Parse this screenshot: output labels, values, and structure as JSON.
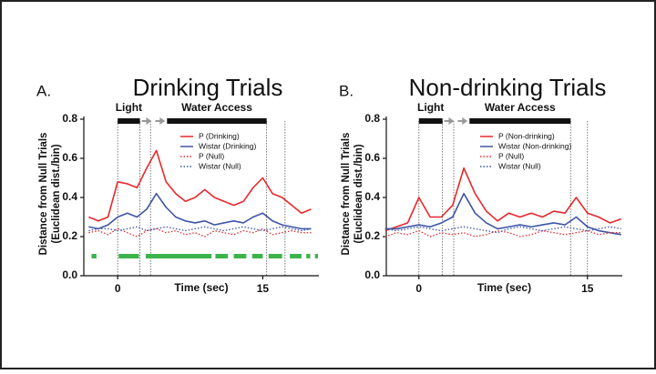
{
  "chart_data": [
    {
      "type": "line",
      "panel": "A.",
      "title": "Drinking Trials",
      "ylabel": [
        "Distance from Null Trials",
        "(Euclidean dist./bin)"
      ],
      "xlabel": "Time (sec)",
      "xlim": [
        -3.5,
        20.8
      ],
      "xticks": [
        0,
        15
      ],
      "ylim": [
        0,
        0.8
      ],
      "yticks": [
        {
          "value": 0,
          "label": "0.0"
        },
        0.2,
        0.4,
        0.6,
        0.8
      ],
      "x": [
        -3,
        -2,
        -1,
        0,
        1,
        2,
        3,
        4,
        5,
        6,
        7,
        8,
        9,
        10,
        11,
        12,
        13,
        14,
        15,
        16,
        17,
        18,
        19,
        20
      ],
      "series": [
        {
          "name": "P (Drinking)",
          "color": "#e8282b",
          "linestyle": "solid",
          "values": [
            0.3,
            0.28,
            0.3,
            0.48,
            0.47,
            0.45,
            0.55,
            0.64,
            0.48,
            0.42,
            0.38,
            0.4,
            0.44,
            0.4,
            0.38,
            0.36,
            0.38,
            0.45,
            0.5,
            0.42,
            0.4,
            0.36,
            0.32,
            0.34
          ]
        },
        {
          "name": "Wistar (Drinking)",
          "color": "#3d55a6",
          "linestyle": "solid",
          "values": [
            0.25,
            0.24,
            0.26,
            0.3,
            0.32,
            0.3,
            0.34,
            0.42,
            0.35,
            0.3,
            0.28,
            0.27,
            0.28,
            0.26,
            0.27,
            0.28,
            0.27,
            0.3,
            0.32,
            0.28,
            0.26,
            0.25,
            0.24,
            0.24
          ]
        },
        {
          "name": "P (Null)",
          "color": "#e8282b",
          "linestyle": "dotted",
          "values": [
            0.22,
            0.23,
            0.21,
            0.24,
            0.22,
            0.2,
            0.23,
            0.24,
            0.22,
            0.23,
            0.21,
            0.22,
            0.2,
            0.23,
            0.22,
            0.21,
            0.23,
            0.22,
            0.24,
            0.21,
            0.22,
            0.23,
            0.22,
            0.22
          ]
        },
        {
          "name": "Wistar (Null)",
          "color": "#3d55a6",
          "linestyle": "dotted",
          "values": [
            0.23,
            0.24,
            0.24,
            0.23,
            0.24,
            0.25,
            0.23,
            0.24,
            0.25,
            0.24,
            0.23,
            0.24,
            0.25,
            0.24,
            0.23,
            0.24,
            0.25,
            0.24,
            0.23,
            0.24,
            0.25,
            0.24,
            0.23,
            0.24
          ]
        }
      ],
      "annotations": [
        {
          "text": "Light",
          "x": [
            0,
            2.3
          ]
        },
        {
          "text": "Water Access",
          "x": [
            5.1,
            15.4
          ]
        }
      ],
      "vlines": [
        0,
        2.3,
        3.4,
        15.4,
        17.3
      ],
      "significance": {
        "y": 0.1,
        "color": "#3cb44b",
        "ranges": [
          [
            -2.7,
            -2.2
          ],
          [
            0.1,
            2.2
          ],
          [
            2.9,
            9.7
          ],
          [
            10.1,
            11.4
          ],
          [
            12,
            13.3
          ],
          [
            13.9,
            15
          ],
          [
            15.6,
            17
          ],
          [
            17.8,
            19
          ],
          [
            19.5,
            19.9
          ],
          [
            20.4,
            20.7
          ]
        ]
      }
    },
    {
      "type": "line",
      "panel": "B.",
      "title": "Non-drinking Trials",
      "ylabel": [
        "Distance from Null Trials",
        "(Euclidean dist./bin)"
      ],
      "xlabel": "Time (sec)",
      "xlim": [
        -2.9,
        18.1
      ],
      "xticks": [
        0,
        15
      ],
      "ylim": [
        0,
        0.8
      ],
      "yticks": [
        {
          "value": 0,
          "label": "0.0"
        },
        0.2,
        0.4,
        0.6,
        0.8
      ],
      "x": [
        -3,
        -2,
        -1,
        0,
        1,
        2,
        3,
        4,
        5,
        6,
        7,
        8,
        9,
        10,
        11,
        12,
        13,
        14,
        15,
        16,
        17,
        18
      ],
      "series": [
        {
          "name": "P (Non-drinking)",
          "color": "#e8282b",
          "linestyle": "solid",
          "values": [
            0.23,
            0.25,
            0.27,
            0.4,
            0.3,
            0.3,
            0.36,
            0.55,
            0.42,
            0.33,
            0.28,
            0.32,
            0.3,
            0.32,
            0.3,
            0.33,
            0.32,
            0.4,
            0.32,
            0.3,
            0.27,
            0.29
          ]
        },
        {
          "name": "Wistar (Non-drinking)",
          "color": "#3d55a6",
          "linestyle": "solid",
          "values": [
            0.24,
            0.24,
            0.25,
            0.26,
            0.25,
            0.27,
            0.3,
            0.42,
            0.32,
            0.27,
            0.24,
            0.25,
            0.26,
            0.25,
            0.26,
            0.27,
            0.26,
            0.3,
            0.25,
            0.23,
            0.22,
            0.21
          ]
        },
        {
          "name": "P (Null)",
          "color": "#e8282b",
          "linestyle": "dotted",
          "values": [
            0.2,
            0.22,
            0.21,
            0.23,
            0.2,
            0.22,
            0.21,
            0.22,
            0.2,
            0.21,
            0.23,
            0.22,
            0.2,
            0.21,
            0.23,
            0.22,
            0.21,
            0.22,
            0.23,
            0.21,
            0.22,
            0.22
          ]
        },
        {
          "name": "Wistar (Null)",
          "color": "#3d55a6",
          "linestyle": "dotted",
          "values": [
            0.24,
            0.23,
            0.24,
            0.25,
            0.24,
            0.23,
            0.24,
            0.25,
            0.24,
            0.23,
            0.22,
            0.24,
            0.25,
            0.24,
            0.23,
            0.24,
            0.25,
            0.24,
            0.23,
            0.24,
            0.25,
            0.24
          ]
        }
      ],
      "annotations": [
        {
          "text": "Light",
          "x": [
            0,
            2.1
          ]
        },
        {
          "text": "Water Access",
          "x": [
            4.5,
            13.5
          ]
        }
      ],
      "vlines": [
        0,
        2.1,
        3.1,
        13.5,
        15
      ]
    }
  ]
}
